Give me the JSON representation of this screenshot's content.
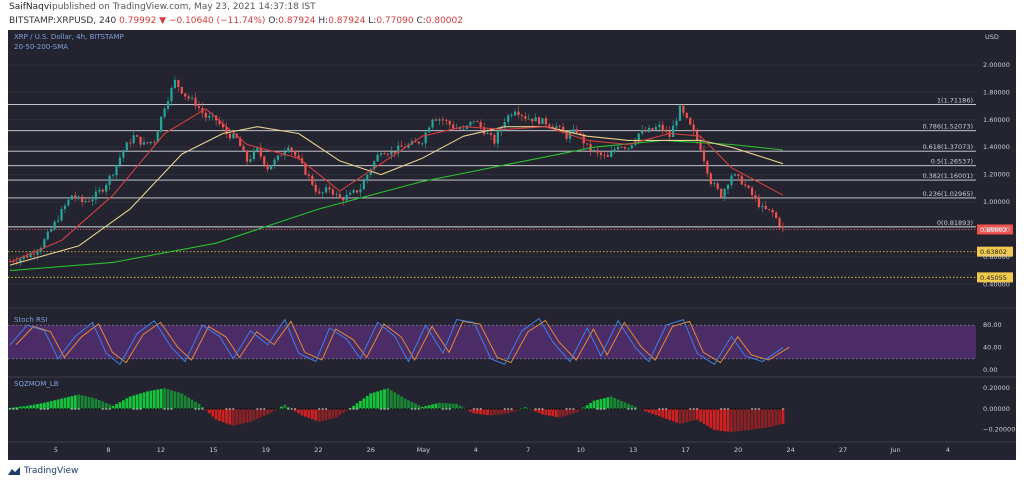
{
  "header": {
    "author": "SaifNaqvi",
    "published": "published on TradingView.com, May 23, 2021 14:37:18 IST",
    "symbol": "BITSTAMP:XRPUSD, 240",
    "change": "0.79992 ▼ −0.10640 (−11.74%)",
    "open_label": "O:",
    "open": "0.87924",
    "high_label": "H:",
    "high": "0.87924",
    "low_label": "L:",
    "low": "0.77090",
    "close_label": "C:",
    "close": "0.80002"
  },
  "footer": {
    "brand": "TradingView"
  },
  "chart_data": {
    "type": "line",
    "title": "XRP / U.S. Dollar, 4h, BITSTAMP",
    "subtitle": "20-50-200-SMA",
    "currency": "USD",
    "x_ticks": [
      "5",
      "8",
      "12",
      "15",
      "19",
      "22",
      "26",
      "May",
      "4",
      "7",
      "10",
      "13",
      "17",
      "20",
      "24",
      "27",
      "Jun",
      "4"
    ],
    "price_axis": {
      "min": 0.3,
      "max": 2.08,
      "ticks": [
        "2.00000",
        "1.80000",
        "1.60000",
        "1.40000",
        "1.20000",
        "1.00000",
        "0.80000",
        "0.60000",
        "0.40000"
      ]
    },
    "fib_levels": [
      {
        "label": "1(1.71186)",
        "value": 1.71186
      },
      {
        "label": "0.786(1.52073)",
        "value": 1.52073
      },
      {
        "label": "0.618(1.37073)",
        "value": 1.37073
      },
      {
        "label": "0.5(1.26537)",
        "value": 1.26537
      },
      {
        "label": "0.382(1.16001)",
        "value": 1.16001
      },
      {
        "label": "0.236(1.02965)",
        "value": 1.02965
      },
      {
        "label": "0(0.81893)",
        "value": 0.81893
      }
    ],
    "support_levels": [
      {
        "label": "0.63802",
        "value": 0.63802
      },
      {
        "label": "0.45055",
        "value": 0.45055
      }
    ],
    "last_price": {
      "label": "0.80002",
      "value": 0.80002
    },
    "price_series": [
      [
        0,
        0.57
      ],
      [
        3,
        0.59
      ],
      [
        6,
        0.62
      ],
      [
        9,
        0.68
      ],
      [
        12,
        0.8
      ],
      [
        15,
        0.93
      ],
      [
        18,
        1.05
      ],
      [
        21,
        1.0
      ],
      [
        24,
        1.03
      ],
      [
        27,
        1.1
      ],
      [
        30,
        1.22
      ],
      [
        33,
        1.38
      ],
      [
        36,
        1.48
      ],
      [
        39,
        1.42
      ],
      [
        42,
        1.45
      ],
      [
        45,
        1.7
      ],
      [
        48,
        1.88
      ],
      [
        51,
        1.78
      ],
      [
        54,
        1.72
      ],
      [
        57,
        1.62
      ],
      [
        60,
        1.6
      ],
      [
        63,
        1.5
      ],
      [
        66,
        1.46
      ],
      [
        69,
        1.3
      ],
      [
        72,
        1.38
      ],
      [
        75,
        1.25
      ],
      [
        78,
        1.32
      ],
      [
        81,
        1.42
      ],
      [
        84,
        1.3
      ],
      [
        87,
        1.18
      ],
      [
        90,
        1.05
      ],
      [
        93,
        1.1
      ],
      [
        96,
        1.02
      ],
      [
        99,
        1.05
      ],
      [
        102,
        1.1
      ],
      [
        105,
        1.25
      ],
      [
        108,
        1.38
      ],
      [
        111,
        1.36
      ],
      [
        114,
        1.4
      ],
      [
        117,
        1.42
      ],
      [
        120,
        1.45
      ],
      [
        123,
        1.62
      ],
      [
        126,
        1.6
      ],
      [
        129,
        1.55
      ],
      [
        132,
        1.52
      ],
      [
        135,
        1.6
      ],
      [
        138,
        1.52
      ],
      [
        141,
        1.44
      ],
      [
        144,
        1.6
      ],
      [
        147,
        1.68
      ],
      [
        150,
        1.62
      ],
      [
        153,
        1.6
      ],
      [
        156,
        1.58
      ],
      [
        159,
        1.55
      ],
      [
        162,
        1.48
      ],
      [
        165,
        1.52
      ],
      [
        168,
        1.4
      ],
      [
        171,
        1.35
      ],
      [
        174,
        1.32
      ],
      [
        177,
        1.42
      ],
      [
        180,
        1.4
      ],
      [
        183,
        1.5
      ],
      [
        186,
        1.52
      ],
      [
        189,
        1.55
      ],
      [
        192,
        1.48
      ],
      [
        195,
        1.68
      ],
      [
        198,
        1.55
      ],
      [
        201,
        1.4
      ],
      [
        204,
        1.15
      ],
      [
        207,
        1.05
      ],
      [
        210,
        1.2
      ],
      [
        213,
        1.15
      ],
      [
        216,
        1.05
      ],
      [
        219,
        0.95
      ],
      [
        222,
        0.92
      ],
      [
        225,
        0.8
      ]
    ],
    "sma20": [
      [
        0,
        0.56
      ],
      [
        15,
        0.72
      ],
      [
        30,
        1.05
      ],
      [
        45,
        1.5
      ],
      [
        57,
        1.68
      ],
      [
        69,
        1.42
      ],
      [
        84,
        1.32
      ],
      [
        96,
        1.08
      ],
      [
        108,
        1.28
      ],
      [
        120,
        1.48
      ],
      [
        132,
        1.55
      ],
      [
        144,
        1.53
      ],
      [
        156,
        1.55
      ],
      [
        168,
        1.45
      ],
      [
        180,
        1.42
      ],
      [
        192,
        1.5
      ],
      [
        201,
        1.48
      ],
      [
        210,
        1.25
      ],
      [
        225,
        1.05
      ]
    ],
    "sma50": [
      [
        0,
        0.54
      ],
      [
        20,
        0.68
      ],
      [
        35,
        0.95
      ],
      [
        50,
        1.35
      ],
      [
        62,
        1.5
      ],
      [
        72,
        1.55
      ],
      [
        84,
        1.5
      ],
      [
        96,
        1.3
      ],
      [
        108,
        1.2
      ],
      [
        120,
        1.32
      ],
      [
        132,
        1.48
      ],
      [
        144,
        1.55
      ],
      [
        156,
        1.55
      ],
      [
        168,
        1.48
      ],
      [
        180,
        1.45
      ],
      [
        192,
        1.45
      ],
      [
        201,
        1.45
      ],
      [
        210,
        1.4
      ],
      [
        225,
        1.28
      ]
    ],
    "sma200": [
      [
        0,
        0.5
      ],
      [
        30,
        0.56
      ],
      [
        60,
        0.7
      ],
      [
        90,
        0.95
      ],
      [
        120,
        1.15
      ],
      [
        150,
        1.3
      ],
      [
        170,
        1.4
      ],
      [
        190,
        1.45
      ],
      [
        210,
        1.42
      ],
      [
        225,
        1.38
      ]
    ],
    "stoch_rsi": {
      "label": "Stoch RSI",
      "ticks": [
        "80.00",
        "40.00",
        "0.00"
      ],
      "upper": 80,
      "lower": 20,
      "k": [
        [
          0,
          45
        ],
        [
          5,
          80
        ],
        [
          10,
          70
        ],
        [
          14,
          20
        ],
        [
          19,
          60
        ],
        [
          24,
          85
        ],
        [
          28,
          30
        ],
        [
          32,
          10
        ],
        [
          37,
          65
        ],
        [
          42,
          88
        ],
        [
          47,
          40
        ],
        [
          51,
          15
        ],
        [
          56,
          80
        ],
        [
          61,
          60
        ],
        [
          65,
          20
        ],
        [
          70,
          70
        ],
        [
          75,
          45
        ],
        [
          80,
          90
        ],
        [
          84,
          30
        ],
        [
          89,
          15
        ],
        [
          93,
          75
        ],
        [
          98,
          55
        ],
        [
          102,
          20
        ],
        [
          107,
          85
        ],
        [
          112,
          60
        ],
        [
          116,
          15
        ],
        [
          121,
          80
        ],
        [
          126,
          30
        ],
        [
          130,
          90
        ],
        [
          135,
          85
        ],
        [
          140,
          20
        ],
        [
          144,
          10
        ],
        [
          149,
          70
        ],
        [
          154,
          92
        ],
        [
          158,
          50
        ],
        [
          163,
          15
        ],
        [
          168,
          75
        ],
        [
          172,
          25
        ],
        [
          177,
          88
        ],
        [
          182,
          40
        ],
        [
          186,
          15
        ],
        [
          191,
          80
        ],
        [
          196,
          90
        ],
        [
          200,
          30
        ],
        [
          205,
          10
        ],
        [
          210,
          60
        ],
        [
          214,
          25
        ],
        [
          219,
          15
        ],
        [
          225,
          40
        ]
      ]
    },
    "momentum": {
      "label": "SQZMOM_LB",
      "ticks": [
        "0.20000",
        "0.00000",
        "−0.20000"
      ],
      "values": [
        [
          0,
          0.01
        ],
        [
          5,
          0.03
        ],
        [
          10,
          0.06
        ],
        [
          15,
          0.1
        ],
        [
          20,
          0.14
        ],
        [
          25,
          0.1
        ],
        [
          30,
          0.03
        ],
        [
          35,
          0.12
        ],
        [
          40,
          0.17
        ],
        [
          45,
          0.2
        ],
        [
          50,
          0.15
        ],
        [
          55,
          0.05
        ],
        [
          60,
          -0.1
        ],
        [
          65,
          -0.16
        ],
        [
          70,
          -0.12
        ],
        [
          75,
          -0.05
        ],
        [
          80,
          0.04
        ],
        [
          85,
          -0.06
        ],
        [
          90,
          -0.12
        ],
        [
          95,
          -0.08
        ],
        [
          100,
          0.03
        ],
        [
          105,
          0.15
        ],
        [
          110,
          0.2
        ],
        [
          115,
          0.1
        ],
        [
          120,
          0.02
        ],
        [
          125,
          0.06
        ],
        [
          130,
          0.05
        ],
        [
          135,
          -0.04
        ],
        [
          140,
          -0.06
        ],
        [
          145,
          -0.04
        ],
        [
          150,
          0.02
        ],
        [
          155,
          -0.05
        ],
        [
          160,
          -0.08
        ],
        [
          165,
          -0.03
        ],
        [
          170,
          0.08
        ],
        [
          175,
          0.12
        ],
        [
          180,
          0.05
        ],
        [
          185,
          -0.02
        ],
        [
          190,
          -0.08
        ],
        [
          195,
          -0.14
        ],
        [
          200,
          -0.1
        ],
        [
          205,
          -0.2
        ],
        [
          210,
          -0.22
        ],
        [
          215,
          -0.2
        ],
        [
          220,
          -0.18
        ],
        [
          225,
          -0.14
        ]
      ]
    }
  },
  "colors": {
    "bg": "#23242f",
    "up": "#26a69a",
    "down": "#ef5350",
    "sma20": "#d43f3f",
    "sma50": "#e6d28a",
    "sma200": "#27c02f",
    "stoch_k": "#3d7ee6",
    "stoch_d": "#e08a36",
    "stoch_band": "#5a2f7a",
    "mom_up": "#14c43a",
    "mom_down": "#d02020"
  }
}
